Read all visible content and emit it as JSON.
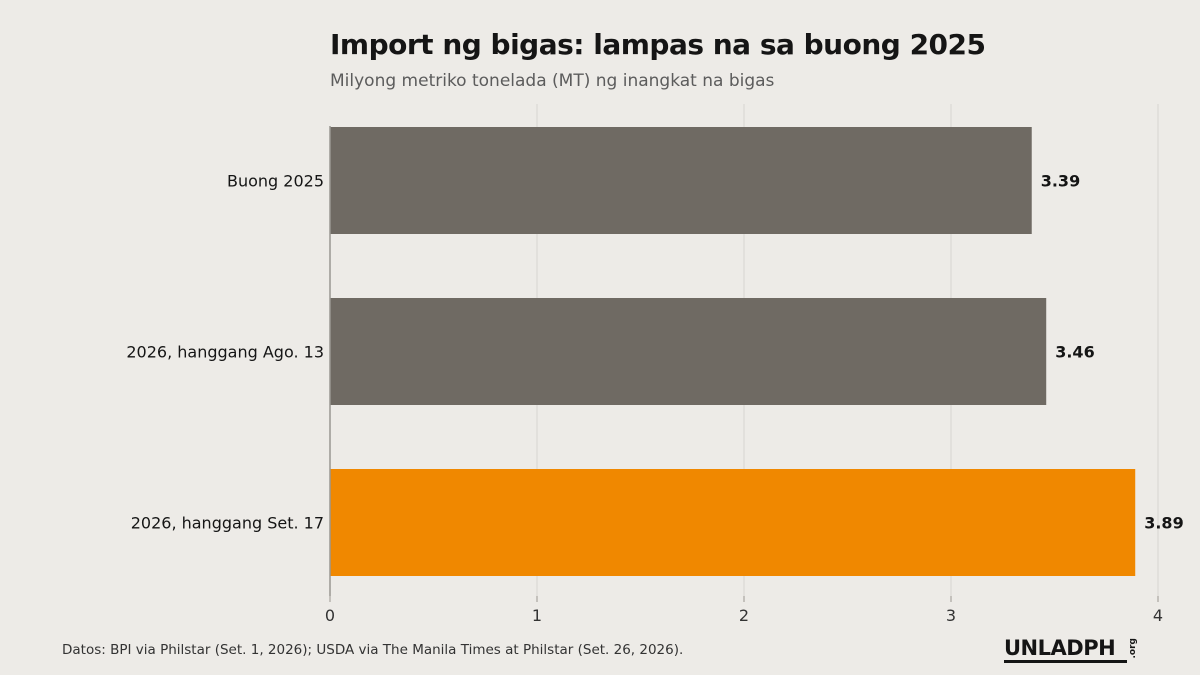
{
  "title": "Import ng bigas: lampas na sa buong 2025",
  "subtitle": "Milyong metriko tonelada (MT) ng inangkat na bigas",
  "source": "Datos: BPI via Philstar (Set. 1, 2026); USDA via The Manila Times at Philstar (Set. 26, 2026).",
  "logo": {
    "main": "UNLADPH",
    "sub": ".org"
  },
  "colors": {
    "background": "#edebe7",
    "bar_default": "#6f6a63",
    "bar_highlight": "#f08800",
    "grid": "#d8d6d1",
    "text": "#151515"
  },
  "chart_data": {
    "type": "bar",
    "orientation": "horizontal",
    "categories": [
      "Buong 2025",
      "2026, hanggang Ago. 13",
      "2026, hanggang Set. 17"
    ],
    "values": [
      3.39,
      3.46,
      3.89
    ],
    "value_labels": [
      "3.39",
      "3.46",
      "3.89"
    ],
    "highlight_index": 2,
    "xlim": [
      0,
      4
    ],
    "xticks": [
      0,
      1,
      2,
      3,
      4
    ],
    "grid": true,
    "title": "Import ng bigas: lampas na sa buong 2025",
    "subtitle": "Milyong metriko tonelada (MT) ng inangkat na bigas",
    "xlabel": "",
    "ylabel": ""
  }
}
